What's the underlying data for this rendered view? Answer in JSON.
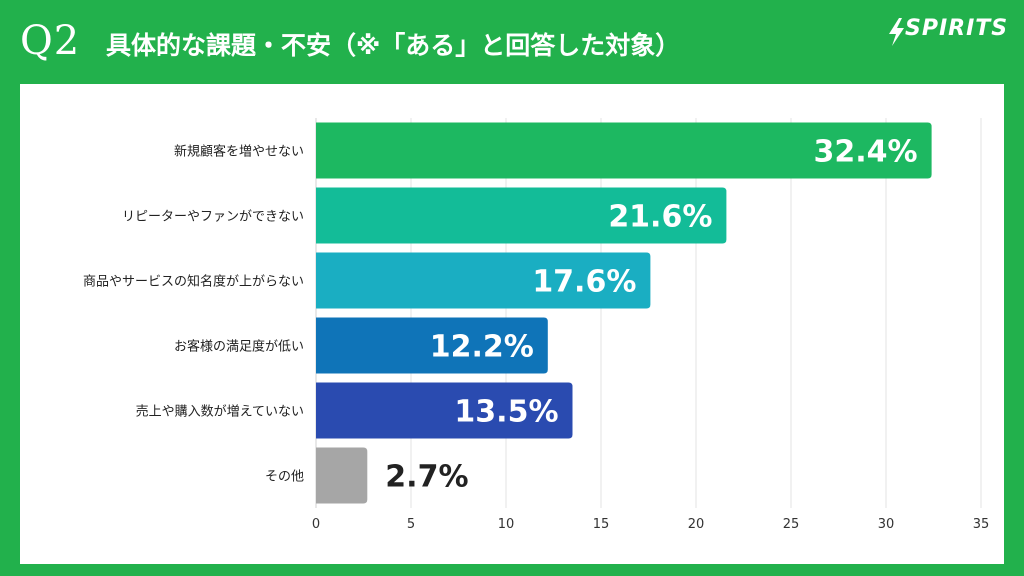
{
  "header": {
    "q_label": "Q2",
    "title": "具体的な課題・不安（※「ある」と回答した対象）",
    "logo_text": "SPIRITS"
  },
  "colors": {
    "background": "#22b14c",
    "panel": "#ffffff"
  },
  "chart_data": {
    "type": "bar",
    "orientation": "horizontal",
    "title": "",
    "xlabel": "",
    "ylabel": "",
    "categories": [
      "新規顧客を増やせない",
      "リピーターやファンができない",
      "商品やサービスの知名度が上がらない",
      "お客様の満足度が低い",
      "売上や購入数が増えていない",
      "その他"
    ],
    "values": [
      32.4,
      21.6,
      17.6,
      12.2,
      13.5,
      2.7
    ],
    "value_labels": [
      "32.4%",
      "21.6%",
      "17.6%",
      "12.2%",
      "13.5%",
      "2.7%"
    ],
    "bar_colors": [
      "#1db861",
      "#13bc98",
      "#1aaec2",
      "#0f74b8",
      "#2a4bb0",
      "#a6a6a6"
    ],
    "xlim": [
      0,
      35
    ],
    "x_ticks": [
      0,
      5,
      10,
      15,
      20,
      25,
      30,
      35
    ],
    "x_tick_labels": [
      "0",
      "5",
      "10",
      "15",
      "20",
      "25",
      "30",
      "35"
    ],
    "grid": true,
    "legend": "none"
  }
}
